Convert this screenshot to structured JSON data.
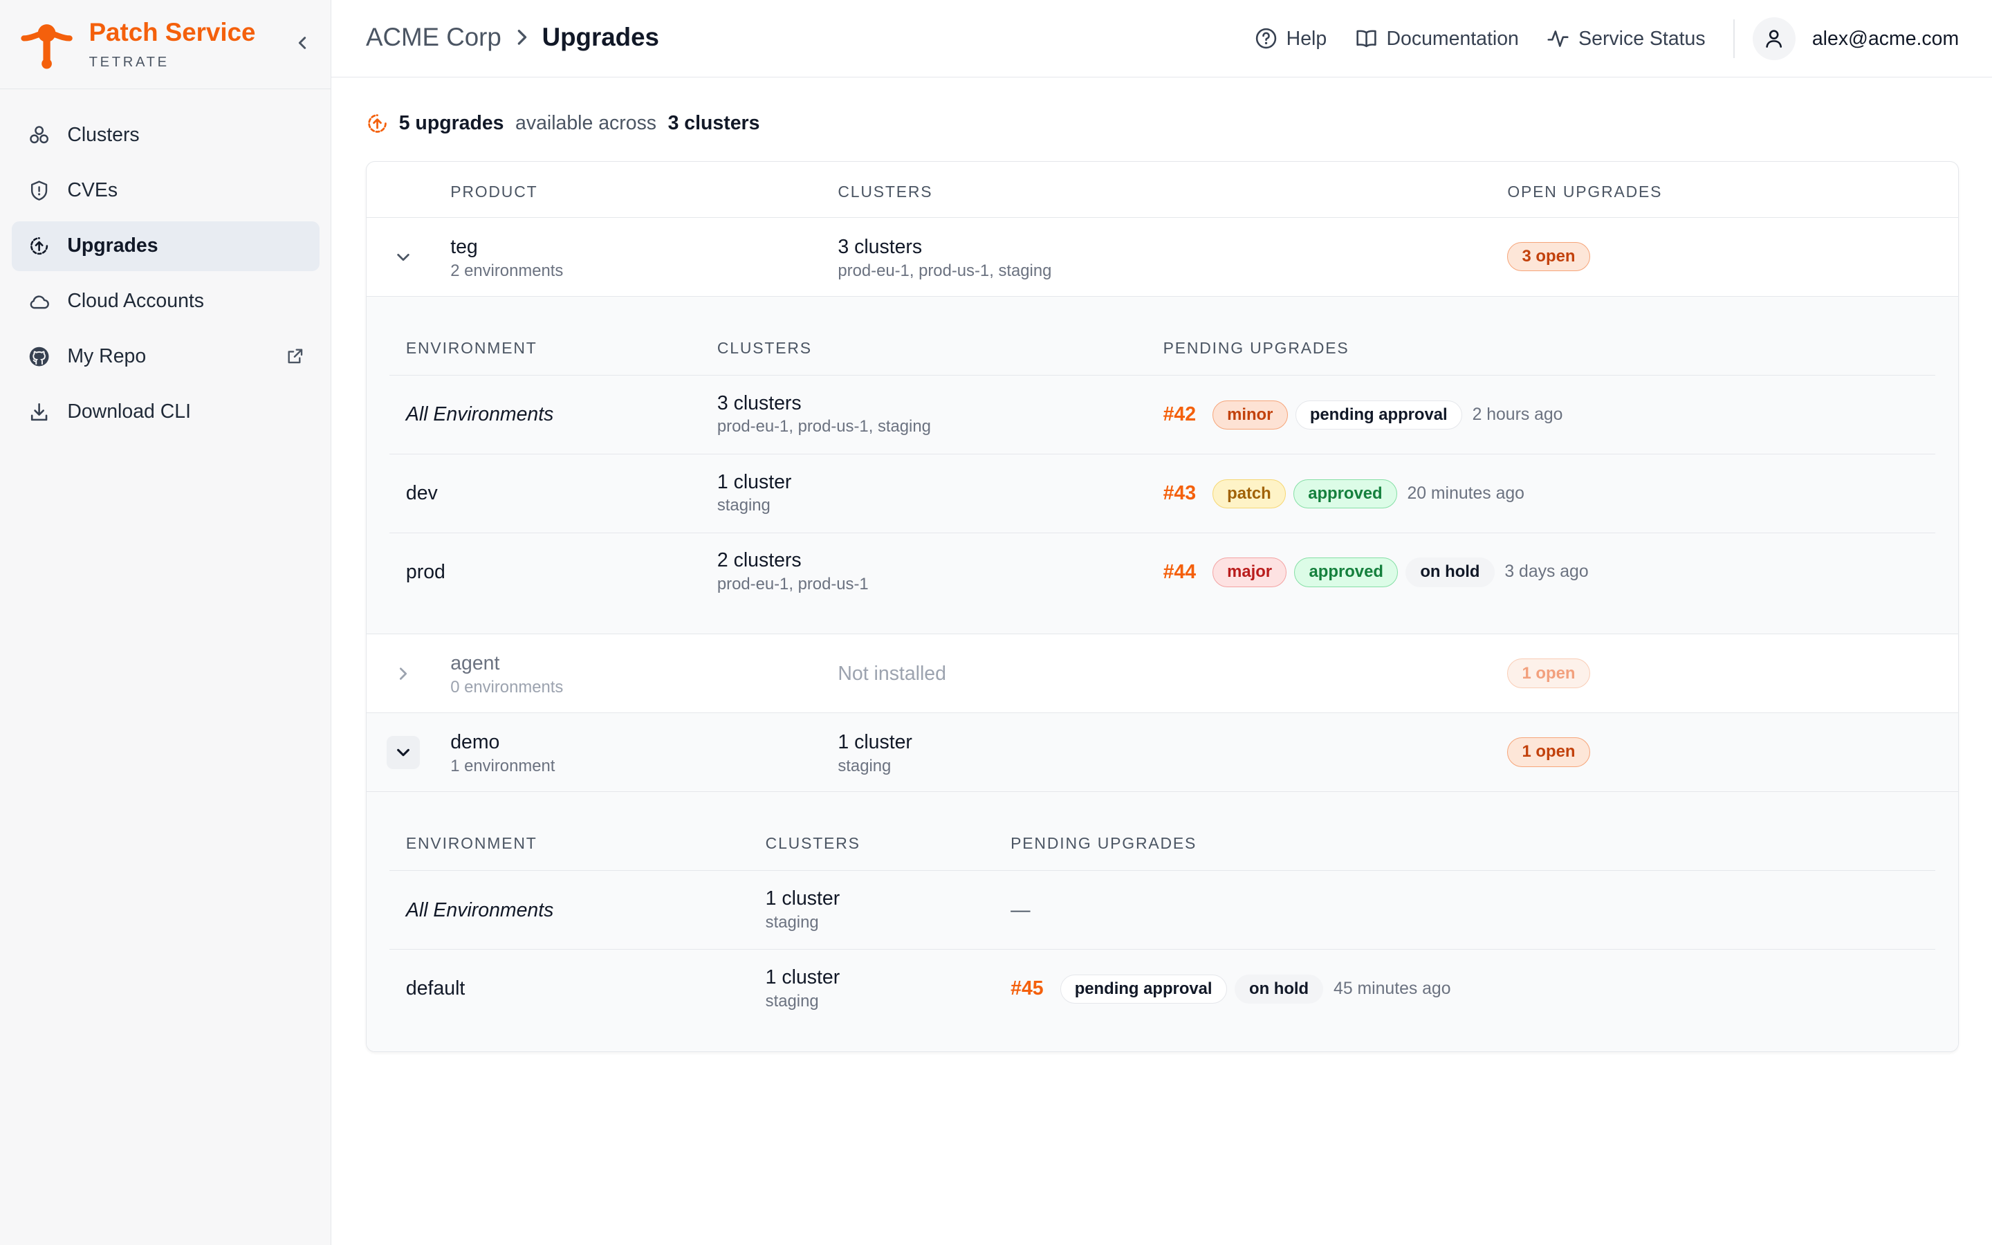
{
  "brand": {
    "name": "Patch Service",
    "sub": "TETRATE",
    "accent": "#f4600c"
  },
  "sidebar": {
    "items": [
      {
        "label": "Clusters",
        "icon": "clusters-icon"
      },
      {
        "label": "CVEs",
        "icon": "shield-icon"
      },
      {
        "label": "Upgrades",
        "icon": "upgrade-icon",
        "active": true
      },
      {
        "label": "Cloud Accounts",
        "icon": "cloud-icon"
      },
      {
        "label": "My Repo",
        "icon": "github-icon"
      },
      {
        "label": "Download CLI",
        "icon": "download-icon"
      }
    ]
  },
  "header": {
    "breadcrumb": [
      "ACME Corp",
      "Upgrades"
    ],
    "links": [
      "Help",
      "Documentation",
      "Service Status"
    ],
    "user": "alex@acme.com"
  },
  "summary": {
    "count": "5 upgrades",
    "middle": "available across",
    "clusters": "3 clusters"
  },
  "table": {
    "headers": [
      "PRODUCT",
      "CLUSTERS",
      "OPEN UPGRADES"
    ],
    "sub_headers": [
      "ENVIRONMENT",
      "CLUSTERS",
      "PENDING UPGRADES"
    ],
    "products": [
      {
        "name": "teg",
        "envs": "2 environments",
        "clusters": "3 clusters",
        "cluster_list": "prod-eu-1, prod-us-1, staging",
        "open": "3 open",
        "expanded": true,
        "rows": [
          {
            "env": "All Environments",
            "clusters": "3 clusters",
            "cluster_list": "prod-eu-1, prod-us-1, staging",
            "num": "#42",
            "badges": [
              "minor",
              "pending approval"
            ],
            "ago": "2 hours ago"
          },
          {
            "env": "dev",
            "clusters": "1 cluster",
            "cluster_list": "staging",
            "num": "#43",
            "badges": [
              "patch",
              "approved"
            ],
            "ago": "20 minutes ago"
          },
          {
            "env": "prod",
            "clusters": "2 clusters",
            "cluster_list": "prod-eu-1, prod-us-1",
            "num": "#44",
            "badges": [
              "major",
              "approved",
              "on hold"
            ],
            "ago": "3 days ago"
          }
        ]
      },
      {
        "name": "agent",
        "envs": "0 environments",
        "clusters": "Not installed",
        "open": "1 open",
        "expanded": false
      },
      {
        "name": "demo",
        "envs": "1 environment",
        "clusters": "1 cluster",
        "cluster_list": "staging",
        "open": "1 open",
        "expanded": true,
        "rows": [
          {
            "env": "All Environments",
            "clusters": "1 cluster",
            "cluster_list": "staging",
            "pending": "—"
          },
          {
            "env": "default",
            "clusters": "1 cluster",
            "cluster_list": "staging",
            "num": "#45",
            "badges": [
              "pending approval",
              "on hold"
            ],
            "ago": "45 minutes ago"
          }
        ]
      }
    ]
  }
}
